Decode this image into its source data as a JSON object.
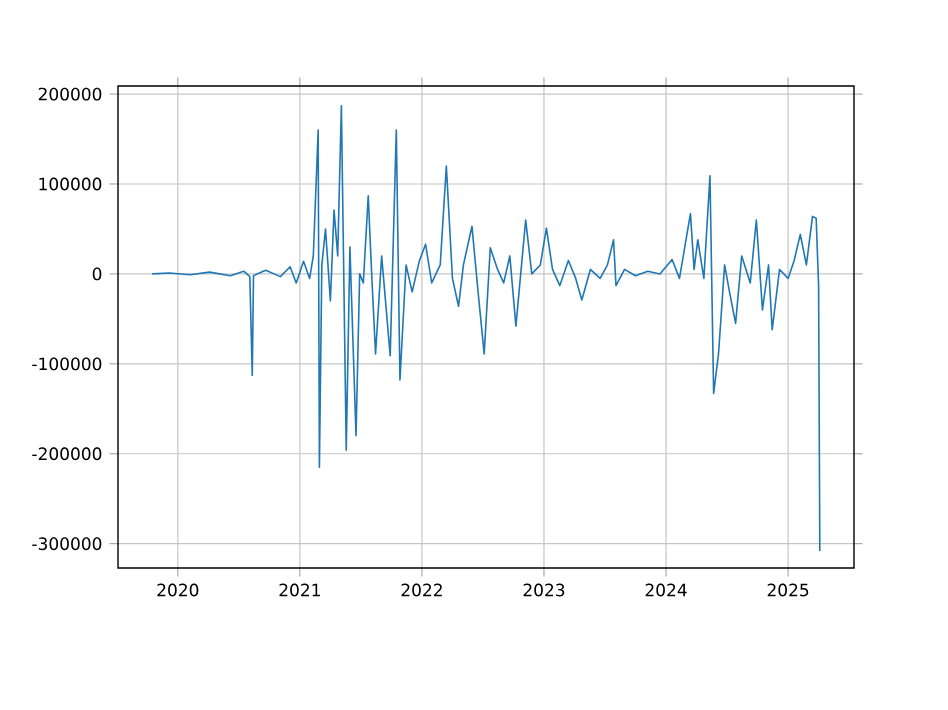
{
  "chart_data": {
    "type": "line",
    "xlim": [
      2019.51,
      2025.54
    ],
    "ylim": [
      -327000,
      209000
    ],
    "xticks": [
      2020,
      2021,
      2022,
      2023,
      2024,
      2025
    ],
    "yticks": [
      -300000,
      -200000,
      -100000,
      0,
      100000,
      200000
    ],
    "grid": true,
    "series": [
      {
        "color": "#1f77b4",
        "x": [
          2019.79,
          2019.93,
          2020.1,
          2020.26,
          2020.43,
          2020.54,
          2020.59,
          2020.61,
          2020.62,
          2020.72,
          2020.84,
          2020.92,
          2020.97,
          2021.03,
          2021.08,
          2021.11,
          2021.15,
          2021.16,
          2021.18,
          2021.21,
          2021.25,
          2021.28,
          2021.31,
          2021.34,
          2021.38,
          2021.41,
          2021.46,
          2021.49,
          2021.52,
          2021.56,
          2021.59,
          2021.62,
          2021.67,
          2021.74,
          2021.79,
          2021.82,
          2021.87,
          2021.92,
          2021.98,
          2022.03,
          2022.08,
          2022.15,
          2022.2,
          2022.25,
          2022.3,
          2022.34,
          2022.41,
          2022.46,
          2022.51,
          2022.56,
          2022.62,
          2022.67,
          2022.72,
          2022.77,
          2022.85,
          2022.9,
          2022.97,
          2023.02,
          2023.07,
          2023.13,
          2023.2,
          2023.26,
          2023.31,
          2023.38,
          2023.46,
          2023.52,
          2023.57,
          2023.59,
          2023.66,
          2023.75,
          2023.85,
          2023.95,
          2024.05,
          2024.11,
          2024.2,
          2024.23,
          2024.26,
          2024.31,
          2024.36,
          2024.39,
          2024.43,
          2024.48,
          2024.52,
          2024.57,
          2024.62,
          2024.69,
          2024.74,
          2024.79,
          2024.84,
          2024.87,
          2024.93,
          2025.0,
          2025.05,
          2025.1,
          2025.15,
          2025.2,
          2025.23,
          2025.25,
          2025.26
        ],
        "values": [
          0,
          1000,
          -1000,
          2000,
          -2000,
          3000,
          -3000,
          -113000,
          -2000,
          4000,
          -3000,
          8000,
          -10000,
          14000,
          -5000,
          20000,
          160000,
          -215000,
          10000,
          50000,
          -30000,
          71000,
          20000,
          187000,
          -196000,
          30000,
          -180000,
          0,
          -10000,
          87000,
          -5000,
          -89000,
          20000,
          -91000,
          160000,
          -118000,
          10000,
          -20000,
          15000,
          33000,
          -10000,
          10000,
          120000,
          -5000,
          -36000,
          10000,
          53000,
          -20000,
          -89000,
          29000,
          5000,
          -10000,
          20000,
          -58000,
          60000,
          0,
          10000,
          51000,
          5000,
          -13000,
          15000,
          -5000,
          -29000,
          5000,
          -5000,
          10000,
          38000,
          -13000,
          5000,
          -2000,
          3000,
          0,
          16000,
          -5000,
          67000,
          5000,
          38000,
          -5000,
          109000,
          -133000,
          -89000,
          10000,
          -20000,
          -55000,
          20000,
          -10000,
          60000,
          -40000,
          10000,
          -62000,
          5000,
          -5000,
          15000,
          44000,
          10000,
          64000,
          62000,
          -13000,
          -308000
        ]
      }
    ]
  }
}
